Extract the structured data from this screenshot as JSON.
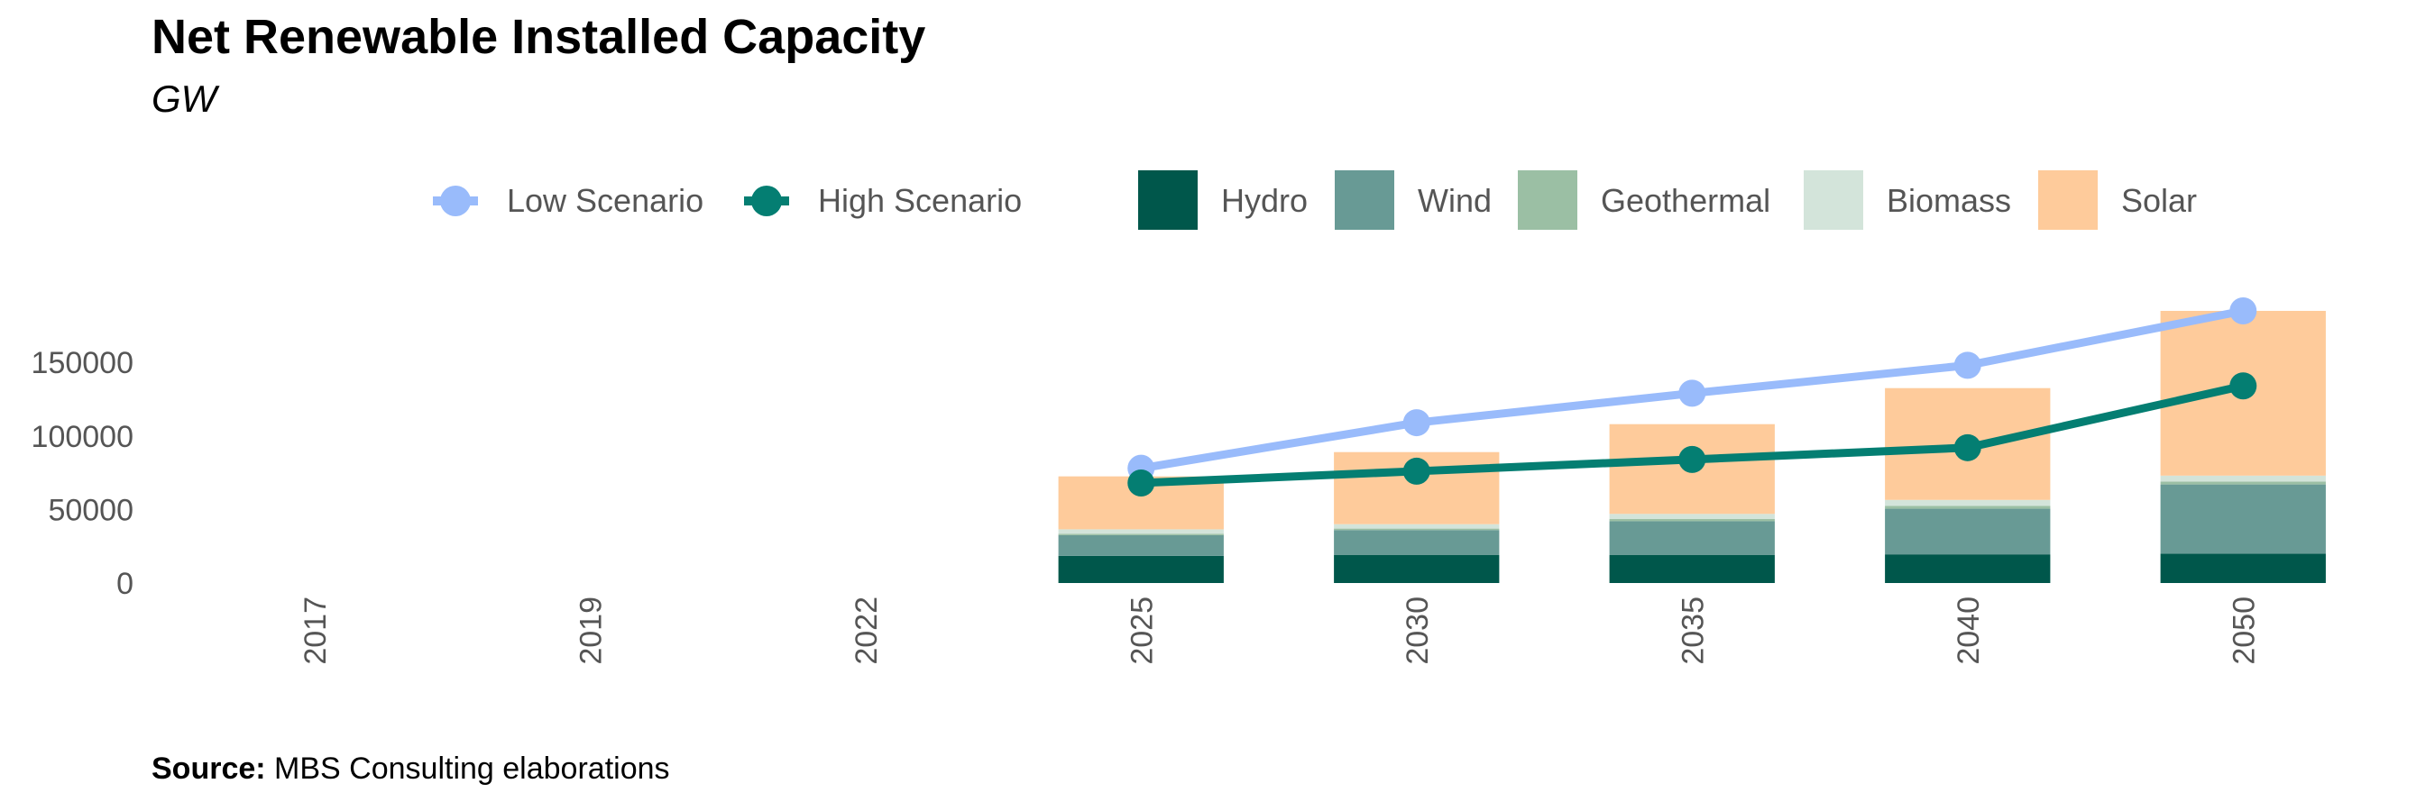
{
  "chart_data": {
    "type": "bar",
    "title": "Net Renewable Installed Capacity",
    "subtitle": "GW",
    "source_label": "Source:",
    "source_text": "MBS Consulting elaborations",
    "categories": [
      "2017",
      "2019",
      "2022",
      "2025",
      "2030",
      "2035",
      "2040",
      "2050"
    ],
    "ylim": [
      0,
      185000
    ],
    "yticks": [
      0,
      50000,
      100000,
      150000
    ],
    "ytick_labels": [
      "0",
      "50000",
      "100000",
      "150000"
    ],
    "grid": false,
    "legend_position": "top",
    "stacked_series": [
      {
        "name": "Hydro",
        "color": "#00574b",
        "values": [
          null,
          null,
          null,
          18500,
          19000,
          19000,
          19500,
          20000
        ]
      },
      {
        "name": "Wind",
        "color": "#689a95",
        "values": [
          null,
          null,
          null,
          14000,
          17000,
          23000,
          31000,
          47000
        ]
      },
      {
        "name": "Geothermal",
        "color": "#9bbfa4",
        "values": [
          null,
          null,
          null,
          1000,
          1000,
          1500,
          2000,
          2000
        ]
      },
      {
        "name": "Biomass",
        "color": "#d3e4da",
        "values": [
          null,
          null,
          null,
          3000,
          3000,
          3500,
          4000,
          4000
        ]
      },
      {
        "name": "Solar",
        "color": "#fecb9b",
        "values": [
          null,
          null,
          null,
          36000,
          49000,
          61000,
          76000,
          112000
        ]
      }
    ],
    "line_series": [
      {
        "name": "Low Scenario",
        "color": "#99bbfb",
        "values": [
          null,
          null,
          null,
          78000,
          109000,
          129000,
          148000,
          185000
        ]
      },
      {
        "name": "High Scenario",
        "color": "#047e72",
        "values": [
          null,
          null,
          null,
          68000,
          76000,
          84000,
          92000,
          134000
        ]
      }
    ]
  }
}
